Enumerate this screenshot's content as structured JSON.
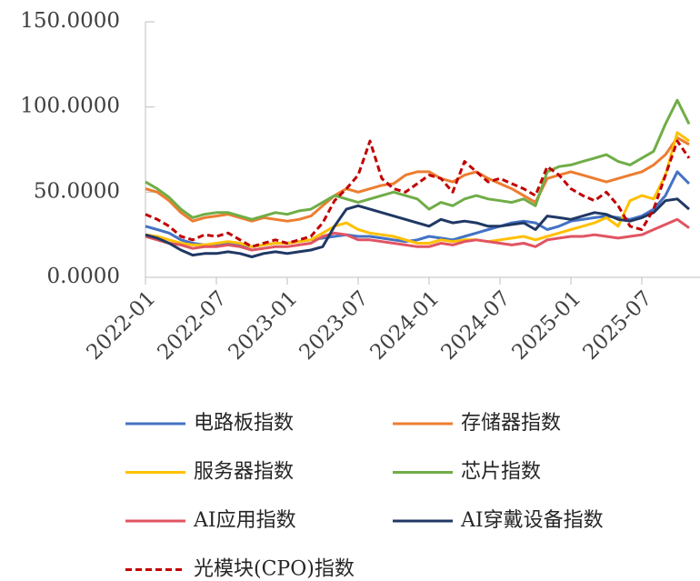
{
  "chart_data": {
    "type": "line",
    "x": [
      "2022-01",
      "2022-02",
      "2022-03",
      "2022-04",
      "2022-05",
      "2022-06",
      "2022-07",
      "2022-08",
      "2022-09",
      "2022-10",
      "2022-11",
      "2022-12",
      "2023-01",
      "2023-02",
      "2023-03",
      "2023-04",
      "2023-05",
      "2023-06",
      "2023-07",
      "2023-08",
      "2023-09",
      "2023-10",
      "2023-11",
      "2023-12",
      "2024-01",
      "2024-02",
      "2024-03",
      "2024-04",
      "2024-05",
      "2024-06",
      "2024-07",
      "2024-08",
      "2024-09",
      "2024-10",
      "2024-11",
      "2024-12",
      "2025-01",
      "2025-02",
      "2025-03",
      "2025-04",
      "2025-05",
      "2025-06",
      "2025-07",
      "2025-08",
      "2025-09",
      "2025-10",
      "2025-11"
    ],
    "xticks": [
      "2022-01",
      "2022-07",
      "2023-01",
      "2023-07",
      "2024-01",
      "2024-07",
      "2025-01",
      "2025-07"
    ],
    "ylim": [
      0,
      150
    ],
    "yticks": [
      {
        "value": 0,
        "label": "0.0000"
      },
      {
        "value": 50,
        "label": "50.0000"
      },
      {
        "value": 100,
        "label": "100.0000"
      },
      {
        "value": 150,
        "label": "150.0000"
      }
    ],
    "series": [
      {
        "name": "电路板指数",
        "color": "#4472C4",
        "values": [
          30,
          28,
          26,
          22,
          20,
          19,
          19,
          20,
          19,
          18,
          19,
          20,
          20,
          21,
          22,
          23,
          24,
          25,
          24,
          24,
          23,
          22,
          21,
          22,
          24,
          23,
          22,
          24,
          26,
          28,
          30,
          32,
          33,
          32,
          28,
          30,
          33,
          34,
          35,
          36,
          35,
          34,
          36,
          40,
          48,
          62,
          55
        ]
      },
      {
        "name": "存储器指数",
        "color": "#ED7D31",
        "values": [
          52,
          50,
          45,
          38,
          33,
          35,
          36,
          37,
          35,
          33,
          35,
          34,
          33,
          34,
          36,
          42,
          48,
          52,
          50,
          52,
          54,
          55,
          60,
          62,
          62,
          58,
          56,
          60,
          62,
          58,
          55,
          52,
          48,
          44,
          58,
          60,
          62,
          60,
          58,
          56,
          58,
          60,
          62,
          66,
          72,
          82,
          78
        ]
      },
      {
        "name": "服务器指数",
        "color": "#FFC000",
        "values": [
          25,
          24,
          22,
          20,
          19,
          19,
          20,
          21,
          20,
          18,
          19,
          20,
          20,
          21,
          22,
          26,
          30,
          32,
          28,
          26,
          25,
          24,
          22,
          20,
          20,
          22,
          21,
          22,
          22,
          21,
          22,
          23,
          24,
          22,
          24,
          26,
          28,
          30,
          32,
          35,
          30,
          45,
          48,
          46,
          60,
          85,
          80
        ]
      },
      {
        "name": "芯片指数",
        "color": "#70AD47",
        "values": [
          56,
          52,
          47,
          40,
          35,
          37,
          38,
          38,
          36,
          34,
          36,
          38,
          37,
          39,
          40,
          44,
          48,
          46,
          44,
          46,
          48,
          50,
          48,
          46,
          40,
          44,
          42,
          46,
          48,
          46,
          45,
          44,
          46,
          42,
          62,
          65,
          66,
          68,
          70,
          72,
          68,
          66,
          70,
          74,
          90,
          104,
          90
        ]
      },
      {
        "name": "AI应用指数",
        "color": "#E15462",
        "values": [
          24,
          22,
          20,
          19,
          17,
          18,
          18,
          19,
          18,
          16,
          17,
          18,
          18,
          19,
          20,
          24,
          26,
          25,
          22,
          22,
          21,
          20,
          19,
          18,
          18,
          20,
          19,
          21,
          22,
          21,
          20,
          19,
          20,
          18,
          22,
          23,
          24,
          24,
          25,
          24,
          23,
          24,
          25,
          28,
          31,
          34,
          29
        ]
      },
      {
        "name": "AI穿戴设备指数",
        "color": "#203864",
        "values": [
          25,
          23,
          20,
          16,
          13,
          14,
          14,
          15,
          14,
          12,
          14,
          15,
          14,
          15,
          16,
          18,
          30,
          40,
          42,
          40,
          38,
          36,
          34,
          32,
          30,
          34,
          32,
          33,
          32,
          30,
          30,
          31,
          32,
          28,
          36,
          35,
          34,
          36,
          38,
          37,
          34,
          33,
          35,
          38,
          45,
          46,
          40
        ]
      },
      {
        "name": "光模块(CPO)指数",
        "color": "#C00000",
        "dashed": true,
        "values": [
          37,
          34,
          30,
          24,
          22,
          25,
          24,
          26,
          22,
          18,
          20,
          22,
          20,
          22,
          24,
          32,
          45,
          52,
          60,
          80,
          58,
          52,
          50,
          55,
          60,
          58,
          50,
          68,
          62,
          56,
          58,
          55,
          52,
          48,
          65,
          60,
          52,
          48,
          45,
          50,
          42,
          30,
          28,
          40,
          60,
          80,
          70
        ]
      }
    ]
  }
}
